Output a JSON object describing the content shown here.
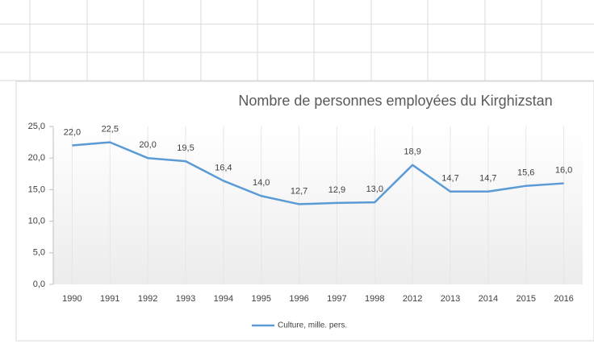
{
  "chart_data": {
    "type": "line",
    "title": "Nombre de personnes employées du Kirghizstan",
    "categories": [
      "1990",
      "1991",
      "1992",
      "1993",
      "1994",
      "1995",
      "1996",
      "1997",
      "1998",
      "2012",
      "2013",
      "2014",
      "2015",
      "2016"
    ],
    "series": [
      {
        "name": "Culture, mille. pers.",
        "color": "#5b9bd5",
        "values": [
          22.0,
          22.5,
          20.0,
          19.5,
          16.4,
          14.0,
          12.7,
          12.9,
          13.0,
          18.9,
          14.7,
          14.7,
          15.6,
          16.0
        ],
        "value_labels": [
          "22,0",
          "22,5",
          "20,0",
          "19,5",
          "16,4",
          "14,0",
          "12,7",
          "12,9",
          "13,0",
          "18,9",
          "14,7",
          "14,7",
          "15,6",
          "16,0"
        ]
      }
    ],
    "ylim": [
      0,
      25
    ],
    "yticks": [
      {
        "value": 0,
        "label": "0,0"
      },
      {
        "value": 5,
        "label": "5,0"
      },
      {
        "value": 10,
        "label": "10,0"
      },
      {
        "value": 15,
        "label": "15,0"
      },
      {
        "value": 20,
        "label": "20,0"
      },
      {
        "value": 25,
        "label": "25,0"
      }
    ],
    "legend": "bottom"
  }
}
